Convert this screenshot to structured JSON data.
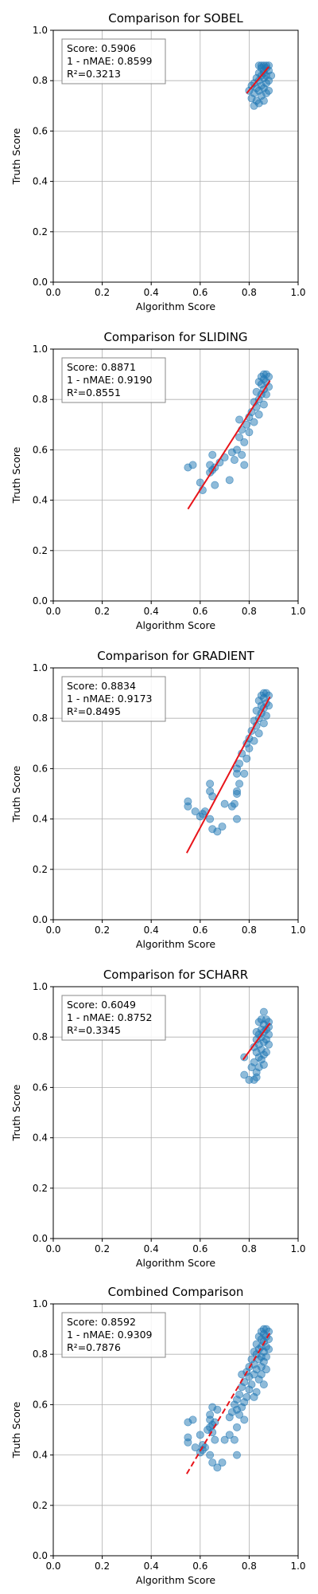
{
  "chart_data": [
    {
      "type": "scatter",
      "title": "Comparison for SOBEL",
      "xlabel": "Algorithm Score",
      "ylabel": "Truth Score",
      "xlim": [
        0,
        1
      ],
      "ylim": [
        0,
        1
      ],
      "xticks": [
        "0.0",
        "0.2",
        "0.4",
        "0.6",
        "0.8",
        "1.0"
      ],
      "yticks": [
        "0.0",
        "0.2",
        "0.4",
        "0.6",
        "0.8",
        "1.0"
      ],
      "grid": true,
      "stats": [
        "Score: 0.5906",
        "1 - nMAE: 0.8599",
        "R²=0.3213"
      ],
      "fit": {
        "x1": 0.79,
        "y1": 0.75,
        "x2": 0.88,
        "y2": 0.855,
        "style": "solid"
      },
      "points": [
        [
          0.84,
          0.86
        ],
        [
          0.85,
          0.86
        ],
        [
          0.86,
          0.86
        ],
        [
          0.87,
          0.86
        ],
        [
          0.88,
          0.86
        ],
        [
          0.85,
          0.85
        ],
        [
          0.87,
          0.85
        ],
        [
          0.86,
          0.84
        ],
        [
          0.88,
          0.84
        ],
        [
          0.84,
          0.83
        ],
        [
          0.86,
          0.83
        ],
        [
          0.87,
          0.82
        ],
        [
          0.89,
          0.82
        ],
        [
          0.85,
          0.82
        ],
        [
          0.83,
          0.81
        ],
        [
          0.86,
          0.81
        ],
        [
          0.88,
          0.8
        ],
        [
          0.84,
          0.8
        ],
        [
          0.82,
          0.79
        ],
        [
          0.87,
          0.79
        ],
        [
          0.85,
          0.78
        ],
        [
          0.81,
          0.78
        ],
        [
          0.83,
          0.77
        ],
        [
          0.86,
          0.77
        ],
        [
          0.8,
          0.76
        ],
        [
          0.84,
          0.76
        ],
        [
          0.82,
          0.75
        ],
        [
          0.87,
          0.75
        ],
        [
          0.85,
          0.74
        ],
        [
          0.81,
          0.73
        ],
        [
          0.83,
          0.72
        ],
        [
          0.86,
          0.72
        ],
        [
          0.84,
          0.71
        ],
        [
          0.82,
          0.7
        ],
        [
          0.88,
          0.76
        ]
      ]
    },
    {
      "type": "scatter",
      "title": "Comparison for SLIDING",
      "xlabel": "Algorithm Score",
      "ylabel": "Truth Score",
      "xlim": [
        0,
        1
      ],
      "ylim": [
        0,
        1
      ],
      "xticks": [
        "0.0",
        "0.2",
        "0.4",
        "0.6",
        "0.8",
        "1.0"
      ],
      "yticks": [
        "0.0",
        "0.2",
        "0.4",
        "0.6",
        "0.8",
        "1.0"
      ],
      "grid": true,
      "stats": [
        "Score: 0.8871",
        "1 - nMAE: 0.9190",
        "R²=0.8551"
      ],
      "fit": {
        "x1": 0.55,
        "y1": 0.365,
        "x2": 0.885,
        "y2": 0.875,
        "style": "solid"
      },
      "points": [
        [
          0.86,
          0.9
        ],
        [
          0.87,
          0.9
        ],
        [
          0.85,
          0.89
        ],
        [
          0.88,
          0.89
        ],
        [
          0.86,
          0.88
        ],
        [
          0.84,
          0.87
        ],
        [
          0.87,
          0.87
        ],
        [
          0.85,
          0.86
        ],
        [
          0.88,
          0.85
        ],
        [
          0.86,
          0.84
        ],
        [
          0.83,
          0.83
        ],
        [
          0.85,
          0.82
        ],
        [
          0.87,
          0.82
        ],
        [
          0.84,
          0.8
        ],
        [
          0.82,
          0.79
        ],
        [
          0.86,
          0.78
        ],
        [
          0.83,
          0.77
        ],
        [
          0.81,
          0.75
        ],
        [
          0.84,
          0.74
        ],
        [
          0.8,
          0.73
        ],
        [
          0.76,
          0.72
        ],
        [
          0.82,
          0.71
        ],
        [
          0.79,
          0.7
        ],
        [
          0.77,
          0.68
        ],
        [
          0.8,
          0.67
        ],
        [
          0.76,
          0.65
        ],
        [
          0.78,
          0.63
        ],
        [
          0.75,
          0.6
        ],
        [
          0.73,
          0.59
        ],
        [
          0.77,
          0.58
        ],
        [
          0.7,
          0.57
        ],
        [
          0.65,
          0.58
        ],
        [
          0.74,
          0.56
        ],
        [
          0.68,
          0.55
        ],
        [
          0.78,
          0.54
        ],
        [
          0.55,
          0.53
        ],
        [
          0.57,
          0.54
        ],
        [
          0.64,
          0.54
        ],
        [
          0.65,
          0.52
        ],
        [
          0.66,
          0.53
        ],
        [
          0.64,
          0.51
        ],
        [
          0.72,
          0.48
        ],
        [
          0.6,
          0.47
        ],
        [
          0.66,
          0.46
        ],
        [
          0.61,
          0.44
        ]
      ]
    },
    {
      "type": "scatter",
      "title": "Comparison for GRADIENT",
      "xlabel": "Algorithm Score",
      "ylabel": "Truth Score",
      "xlim": [
        0,
        1
      ],
      "ylim": [
        0,
        1
      ],
      "xticks": [
        "0.0",
        "0.2",
        "0.4",
        "0.6",
        "0.8",
        "1.0"
      ],
      "yticks": [
        "0.0",
        "0.2",
        "0.4",
        "0.6",
        "0.8",
        "1.0"
      ],
      "grid": true,
      "stats": [
        "Score: 0.8834",
        "1 - nMAE: 0.9173",
        "R²=0.8495"
      ],
      "fit": {
        "x1": 0.545,
        "y1": 0.265,
        "x2": 0.885,
        "y2": 0.885,
        "style": "solid"
      },
      "points": [
        [
          0.86,
          0.9
        ],
        [
          0.87,
          0.9
        ],
        [
          0.85,
          0.89
        ],
        [
          0.88,
          0.89
        ],
        [
          0.86,
          0.88
        ],
        [
          0.84,
          0.87
        ],
        [
          0.87,
          0.86
        ],
        [
          0.85,
          0.85
        ],
        [
          0.88,
          0.85
        ],
        [
          0.86,
          0.84
        ],
        [
          0.83,
          0.83
        ],
        [
          0.85,
          0.82
        ],
        [
          0.87,
          0.81
        ],
        [
          0.84,
          0.8
        ],
        [
          0.82,
          0.79
        ],
        [
          0.86,
          0.78
        ],
        [
          0.83,
          0.77
        ],
        [
          0.81,
          0.75
        ],
        [
          0.84,
          0.74
        ],
        [
          0.8,
          0.72
        ],
        [
          0.82,
          0.71
        ],
        [
          0.79,
          0.7
        ],
        [
          0.8,
          0.68
        ],
        [
          0.77,
          0.66
        ],
        [
          0.79,
          0.64
        ],
        [
          0.76,
          0.62
        ],
        [
          0.75,
          0.6
        ],
        [
          0.78,
          0.58
        ],
        [
          0.75,
          0.58
        ],
        [
          0.76,
          0.54
        ],
        [
          0.64,
          0.54
        ],
        [
          0.75,
          0.51
        ],
        [
          0.75,
          0.5
        ],
        [
          0.64,
          0.51
        ],
        [
          0.65,
          0.49
        ],
        [
          0.55,
          0.47
        ],
        [
          0.55,
          0.45
        ],
        [
          0.7,
          0.46
        ],
        [
          0.74,
          0.46
        ],
        [
          0.73,
          0.45
        ],
        [
          0.58,
          0.43
        ],
        [
          0.62,
          0.43
        ],
        [
          0.61,
          0.42
        ],
        [
          0.6,
          0.41
        ],
        [
          0.64,
          0.4
        ],
        [
          0.75,
          0.4
        ],
        [
          0.65,
          0.36
        ],
        [
          0.67,
          0.35
        ],
        [
          0.69,
          0.37
        ]
      ]
    },
    {
      "type": "scatter",
      "title": "Comparison for SCHARR",
      "xlabel": "Algorithm Score",
      "ylabel": "Truth Score",
      "xlim": [
        0,
        1
      ],
      "ylim": [
        0,
        1
      ],
      "xticks": [
        "0.0",
        "0.2",
        "0.4",
        "0.6",
        "0.8",
        "1.0"
      ],
      "yticks": [
        "0.0",
        "0.2",
        "0.4",
        "0.6",
        "0.8",
        "1.0"
      ],
      "grid": true,
      "stats": [
        "Score: 0.6049",
        "1 - nMAE: 0.8752",
        "R²=0.3345"
      ],
      "fit": {
        "x1": 0.775,
        "y1": 0.71,
        "x2": 0.885,
        "y2": 0.855,
        "style": "solid"
      },
      "points": [
        [
          0.86,
          0.9
        ],
        [
          0.85,
          0.87
        ],
        [
          0.87,
          0.87
        ],
        [
          0.88,
          0.86
        ],
        [
          0.84,
          0.86
        ],
        [
          0.86,
          0.85
        ],
        [
          0.88,
          0.84
        ],
        [
          0.85,
          0.83
        ],
        [
          0.87,
          0.83
        ],
        [
          0.83,
          0.82
        ],
        [
          0.86,
          0.82
        ],
        [
          0.84,
          0.81
        ],
        [
          0.88,
          0.81
        ],
        [
          0.85,
          0.8
        ],
        [
          0.87,
          0.79
        ],
        [
          0.83,
          0.79
        ],
        [
          0.86,
          0.78
        ],
        [
          0.84,
          0.77
        ],
        [
          0.88,
          0.77
        ],
        [
          0.82,
          0.76
        ],
        [
          0.85,
          0.75
        ],
        [
          0.87,
          0.74
        ],
        [
          0.83,
          0.74
        ],
        [
          0.86,
          0.73
        ],
        [
          0.84,
          0.72
        ],
        [
          0.78,
          0.72
        ],
        [
          0.85,
          0.71
        ],
        [
          0.82,
          0.7
        ],
        [
          0.86,
          0.69
        ],
        [
          0.84,
          0.68
        ],
        [
          0.81,
          0.68
        ],
        [
          0.83,
          0.66
        ],
        [
          0.78,
          0.65
        ],
        [
          0.8,
          0.63
        ],
        [
          0.83,
          0.64
        ],
        [
          0.82,
          0.63
        ]
      ]
    },
    {
      "type": "scatter",
      "title": "Combined Comparison",
      "xlabel": "Algorithm Score",
      "ylabel": "Truth Score",
      "xlim": [
        0,
        1
      ],
      "ylim": [
        0,
        1
      ],
      "xticks": [
        "0.0",
        "0.2",
        "0.4",
        "0.6",
        "0.8",
        "1.0"
      ],
      "yticks": [
        "0.0",
        "0.2",
        "0.4",
        "0.6",
        "0.8",
        "1.0"
      ],
      "grid": true,
      "stats": [
        "Score: 0.8592",
        "1 - nMAE: 0.9309",
        "R²=0.7876"
      ],
      "fit": {
        "x1": 0.545,
        "y1": 0.325,
        "x2": 0.885,
        "y2": 0.885,
        "style": "dashed"
      },
      "points": [
        [
          0.86,
          0.9
        ],
        [
          0.87,
          0.9
        ],
        [
          0.85,
          0.89
        ],
        [
          0.88,
          0.89
        ],
        [
          0.86,
          0.88
        ],
        [
          0.84,
          0.87
        ],
        [
          0.87,
          0.87
        ],
        [
          0.85,
          0.86
        ],
        [
          0.88,
          0.86
        ],
        [
          0.86,
          0.85
        ],
        [
          0.83,
          0.84
        ],
        [
          0.85,
          0.83
        ],
        [
          0.87,
          0.83
        ],
        [
          0.84,
          0.82
        ],
        [
          0.88,
          0.82
        ],
        [
          0.82,
          0.81
        ],
        [
          0.86,
          0.81
        ],
        [
          0.83,
          0.8
        ],
        [
          0.85,
          0.79
        ],
        [
          0.87,
          0.79
        ],
        [
          0.81,
          0.78
        ],
        [
          0.84,
          0.78
        ],
        [
          0.86,
          0.77
        ],
        [
          0.82,
          0.76
        ],
        [
          0.85,
          0.75
        ],
        [
          0.8,
          0.75
        ],
        [
          0.83,
          0.74
        ],
        [
          0.87,
          0.74
        ],
        [
          0.79,
          0.73
        ],
        [
          0.82,
          0.72
        ],
        [
          0.85,
          0.72
        ],
        [
          0.77,
          0.72
        ],
        [
          0.8,
          0.71
        ],
        [
          0.84,
          0.7
        ],
        [
          0.78,
          0.69
        ],
        [
          0.81,
          0.68
        ],
        [
          0.86,
          0.68
        ],
        [
          0.77,
          0.67
        ],
        [
          0.8,
          0.66
        ],
        [
          0.83,
          0.65
        ],
        [
          0.76,
          0.64
        ],
        [
          0.79,
          0.63
        ],
        [
          0.82,
          0.63
        ],
        [
          0.75,
          0.62
        ],
        [
          0.78,
          0.61
        ],
        [
          0.74,
          0.6
        ],
        [
          0.77,
          0.59
        ],
        [
          0.65,
          0.59
        ],
        [
          0.75,
          0.58
        ],
        [
          0.67,
          0.58
        ],
        [
          0.73,
          0.57
        ],
        [
          0.64,
          0.56
        ],
        [
          0.76,
          0.56
        ],
        [
          0.72,
          0.55
        ],
        [
          0.64,
          0.54
        ],
        [
          0.78,
          0.54
        ],
        [
          0.55,
          0.53
        ],
        [
          0.57,
          0.54
        ],
        [
          0.65,
          0.52
        ],
        [
          0.66,
          0.53
        ],
        [
          0.64,
          0.51
        ],
        [
          0.75,
          0.51
        ],
        [
          0.63,
          0.5
        ],
        [
          0.65,
          0.49
        ],
        [
          0.6,
          0.48
        ],
        [
          0.72,
          0.48
        ],
        [
          0.55,
          0.47
        ],
        [
          0.66,
          0.46
        ],
        [
          0.55,
          0.45
        ],
        [
          0.7,
          0.46
        ],
        [
          0.74,
          0.46
        ],
        [
          0.61,
          0.44
        ],
        [
          0.58,
          0.43
        ],
        [
          0.62,
          0.43
        ],
        [
          0.61,
          0.42
        ],
        [
          0.6,
          0.41
        ],
        [
          0.64,
          0.4
        ],
        [
          0.75,
          0.4
        ],
        [
          0.65,
          0.37
        ],
        [
          0.67,
          0.35
        ],
        [
          0.69,
          0.37
        ]
      ]
    }
  ]
}
